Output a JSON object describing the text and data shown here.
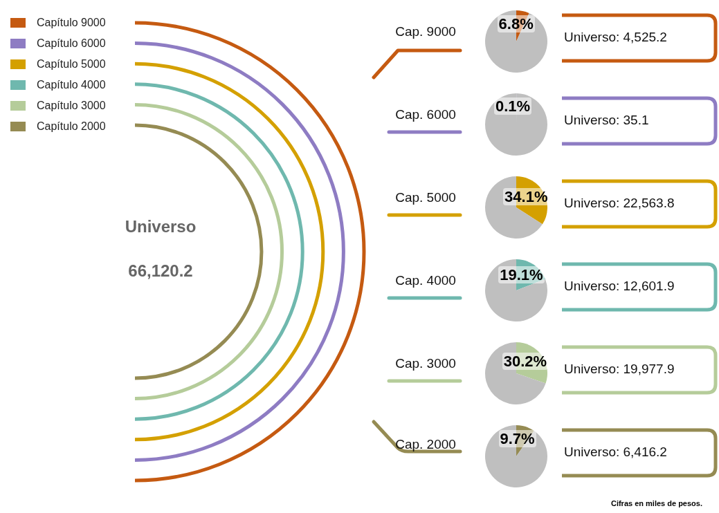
{
  "chart_data": [
    {
      "type": "other",
      "title": "Universo",
      "annotations": [
        "66,120.2",
        "Cifras en miles de pesos."
      ],
      "categories": [
        "Capítulo 9000",
        "Capítulo 6000",
        "Capítulo 5000",
        "Capítulo 4000",
        "Capítulo 3000",
        "Capítulo 2000"
      ],
      "colors": [
        "#c55a11",
        "#8e7cc3",
        "#d4a000",
        "#6fb8ae",
        "#b5cc9a",
        "#958b53"
      ]
    },
    {
      "type": "pie",
      "title": "Cap. 9000",
      "categories": [
        null,
        null
      ],
      "values": [
        6.8,
        93.2
      ],
      "colors": [
        "#c55a11",
        "#bfbfbf"
      ],
      "value_labels": [
        "6.8%",
        null
      ],
      "annotations": [
        "Universo: 4,525.2"
      ]
    },
    {
      "type": "pie",
      "title": "Cap. 6000",
      "categories": [
        null,
        null
      ],
      "values": [
        0.1,
        99.9
      ],
      "colors": [
        "#8e7cc3",
        "#bfbfbf"
      ],
      "value_labels": [
        "0.1%",
        null
      ],
      "annotations": [
        "Universo: 35.1"
      ]
    },
    {
      "type": "pie",
      "title": "Cap. 5000",
      "categories": [
        null,
        null
      ],
      "values": [
        34.1,
        65.9
      ],
      "colors": [
        "#d4a000",
        "#bfbfbf"
      ],
      "value_labels": [
        "34.1%",
        null
      ],
      "annotations": [
        "Universo: 22,563.8"
      ]
    },
    {
      "type": "pie",
      "title": "Cap. 4000",
      "categories": [
        null,
        null
      ],
      "values": [
        19.1,
        80.9
      ],
      "colors": [
        "#6fb8ae",
        "#bfbfbf"
      ],
      "value_labels": [
        "19.1%",
        null
      ],
      "annotations": [
        "Universo: 12,601.9"
      ]
    },
    {
      "type": "pie",
      "title": "Cap. 3000",
      "categories": [
        null,
        null
      ],
      "values": [
        30.2,
        69.8
      ],
      "colors": [
        "#b5cc9a",
        "#bfbfbf"
      ],
      "value_labels": [
        "30.2%",
        null
      ],
      "annotations": [
        "Universo: 19,977.9"
      ]
    },
    {
      "type": "pie",
      "title": "Cap. 2000",
      "categories": [
        null,
        null
      ],
      "values": [
        9.7,
        90.3
      ],
      "colors": [
        "#958b53",
        "#bfbfbf"
      ],
      "value_labels": [
        "9.7%",
        null
      ],
      "annotations": [
        "Universo: 6,416.2"
      ]
    }
  ]
}
